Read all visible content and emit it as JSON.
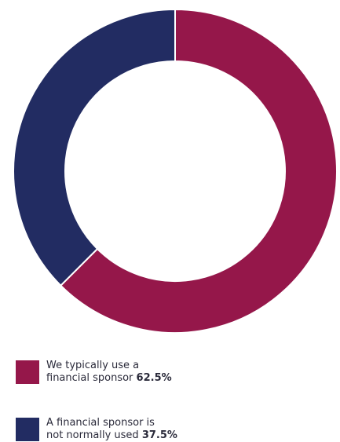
{
  "chart_data": {
    "type": "pie",
    "variant": "donut",
    "slices": [
      {
        "label_lines": [
          "We typically use a",
          "financial sponsor"
        ],
        "value": 62.5,
        "value_label": "62.5%",
        "color": "#95174a"
      },
      {
        "label_lines": [
          "A financial sponsor is",
          "not normally used"
        ],
        "value": 37.5,
        "value_label": "37.5%",
        "color": "#222c62"
      }
    ],
    "legend_position": "bottom-left"
  }
}
